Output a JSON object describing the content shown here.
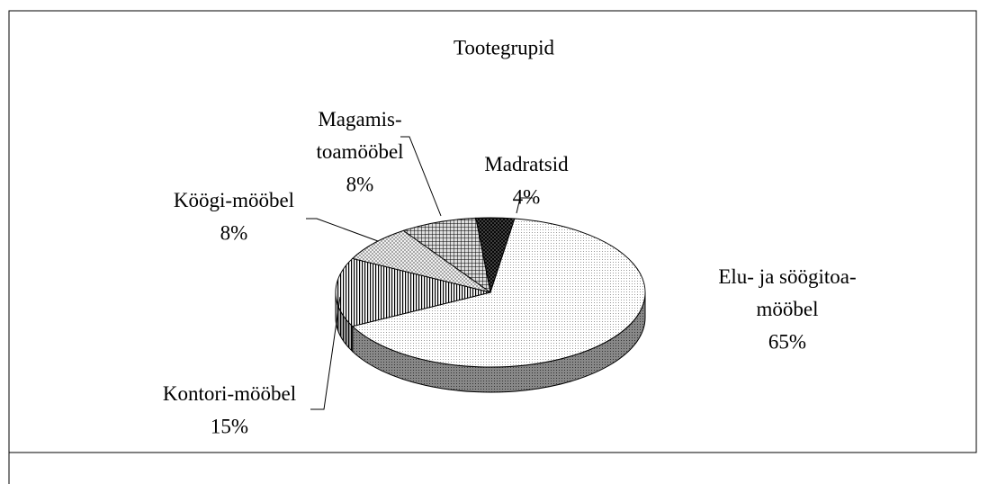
{
  "chart_data": {
    "type": "pie3d",
    "title": "Tootegrupid",
    "categories": [
      "Madratsid",
      "Elu- ja söögitoa-\nmööbel",
      "Kontori-mööbel",
      "Köögi-mööbel",
      "Magamis-\ntoamööbel"
    ],
    "values": [
      4,
      65,
      15,
      8,
      8
    ],
    "value_labels": [
      "4%",
      "65%",
      "15%",
      "8%",
      "8%"
    ]
  }
}
